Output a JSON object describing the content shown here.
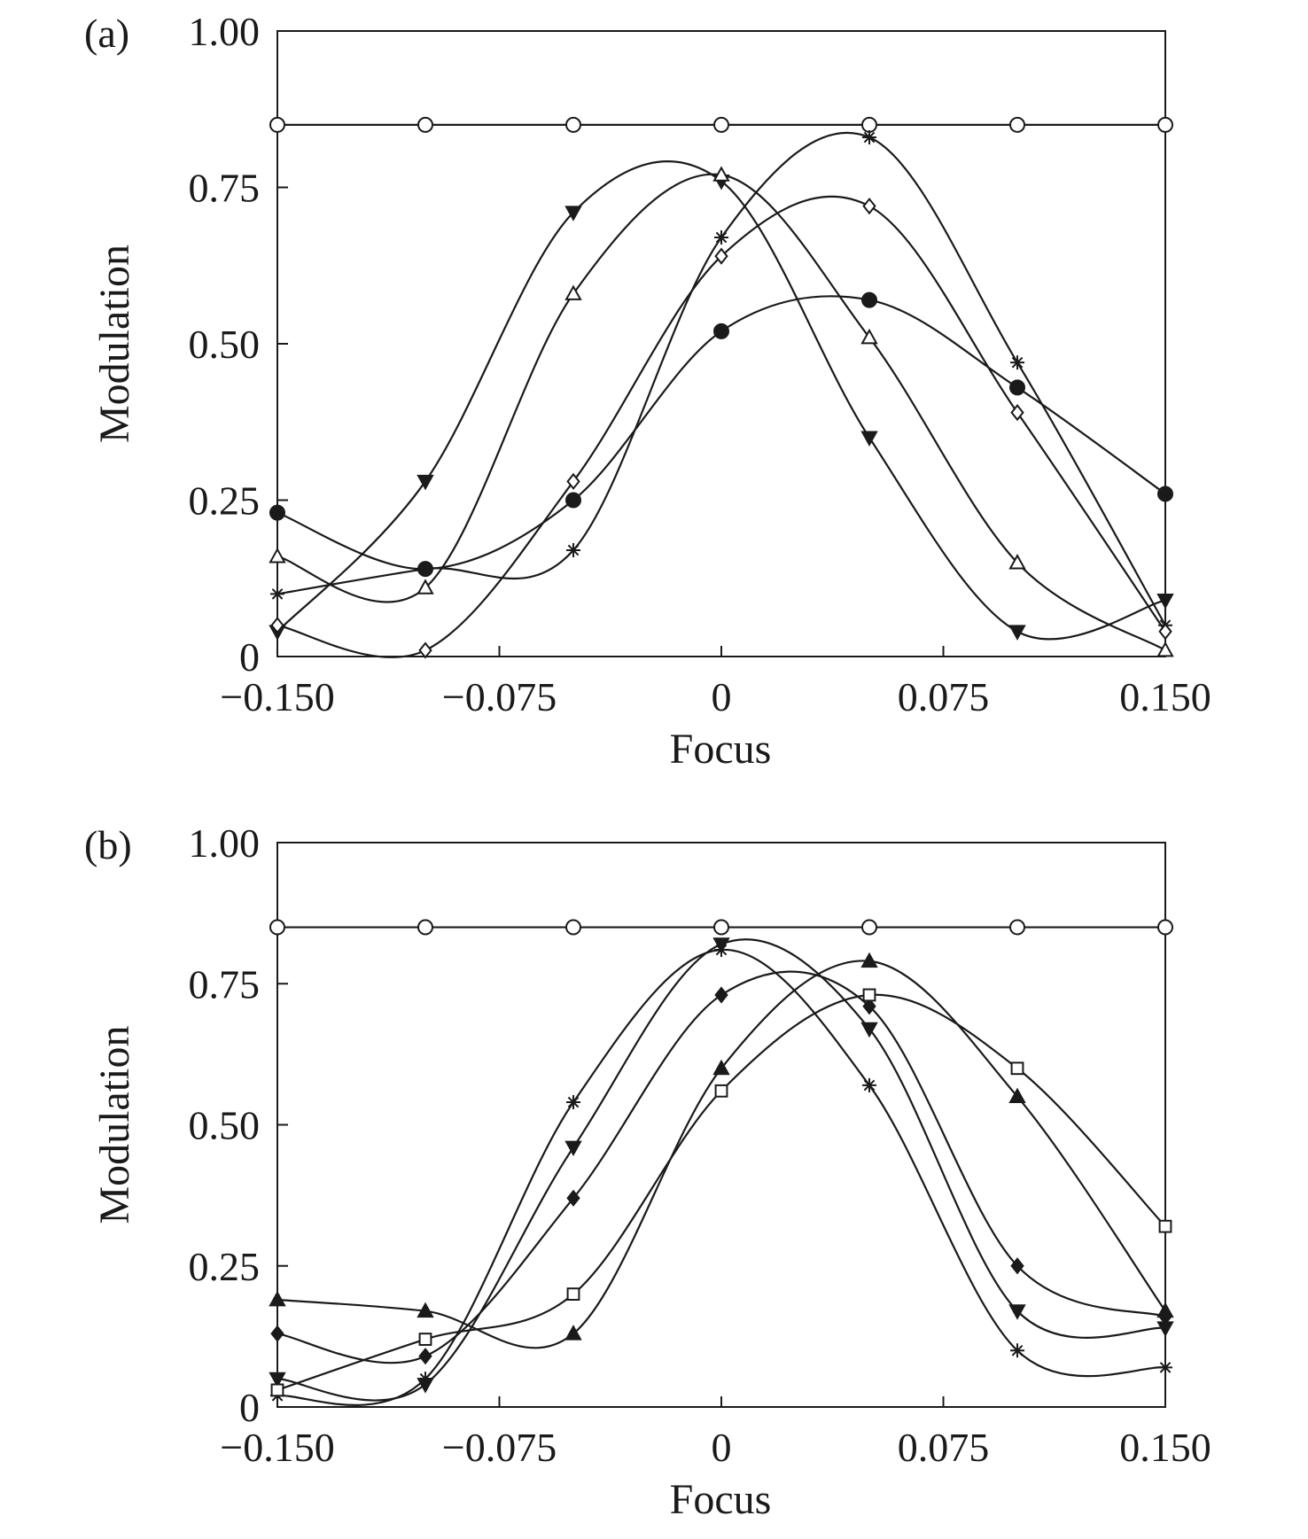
{
  "chart_data": [
    {
      "panel_label": "(a)",
      "type": "line",
      "xlabel": "Focus",
      "ylabel": "Modulation",
      "xlim": [
        -0.15,
        0.15
      ],
      "ylim": [
        0,
        1.0
      ],
      "x_ticks": [
        "−0.150",
        "−0.075",
        "0",
        "0.075",
        "0.150"
      ],
      "y_ticks": [
        "0",
        "0.25",
        "0.50",
        "0.75",
        "1.00"
      ],
      "x_tick_values": [
        -0.15,
        -0.075,
        0,
        0.075,
        0.15
      ],
      "y_tick_values": [
        0,
        0.25,
        0.5,
        0.75,
        1.0
      ],
      "grid": false,
      "x": [
        -0.15,
        -0.1,
        -0.05,
        0,
        0.05,
        0.1,
        0.15
      ],
      "series": [
        {
          "marker": "circle-open",
          "values": [
            0.85,
            0.85,
            0.85,
            0.85,
            0.85,
            0.85,
            0.85
          ]
        },
        {
          "marker": "triangle-down-filled",
          "values": [
            0.04,
            0.28,
            0.71,
            0.76,
            0.35,
            0.04,
            0.09
          ]
        },
        {
          "marker": "triangle-up-open",
          "values": [
            0.16,
            0.11,
            0.58,
            0.77,
            0.51,
            0.15,
            0.01
          ]
        },
        {
          "marker": "star",
          "values": [
            0.1,
            0.14,
            0.17,
            0.67,
            0.83,
            0.47,
            0.05
          ]
        },
        {
          "marker": "diamond-open",
          "values": [
            0.05,
            0.01,
            0.28,
            0.64,
            0.72,
            0.39,
            0.04
          ]
        },
        {
          "marker": "hexagon-filled",
          "values": [
            0.23,
            0.14,
            0.25,
            0.52,
            0.57,
            0.43,
            0.26
          ]
        }
      ]
    },
    {
      "panel_label": "(b)",
      "type": "line",
      "xlabel": "Focus",
      "ylabel": "Modulation",
      "xlim": [
        -0.15,
        0.15
      ],
      "ylim": [
        0,
        1.0
      ],
      "x_ticks": [
        "−0.150",
        "−0.075",
        "0",
        "0.075",
        "0.150"
      ],
      "y_ticks": [
        "0",
        "0.25",
        "0.50",
        "0.75",
        "1.00"
      ],
      "x_tick_values": [
        -0.15,
        -0.075,
        0,
        0.075,
        0.15
      ],
      "y_tick_values": [
        0,
        0.25,
        0.5,
        0.75,
        1.0
      ],
      "grid": false,
      "x": [
        -0.15,
        -0.1,
        -0.05,
        0,
        0.05,
        0.1,
        0.15
      ],
      "series": [
        {
          "marker": "circle-open",
          "values": [
            0.85,
            0.85,
            0.85,
            0.85,
            0.85,
            0.85,
            0.85
          ]
        },
        {
          "marker": "star",
          "values": [
            0.02,
            0.05,
            0.54,
            0.81,
            0.57,
            0.1,
            0.07
          ]
        },
        {
          "marker": "triangle-down-filled",
          "values": [
            0.05,
            0.04,
            0.46,
            0.82,
            0.67,
            0.17,
            0.14
          ]
        },
        {
          "marker": "diamond-filled",
          "values": [
            0.13,
            0.09,
            0.37,
            0.73,
            0.71,
            0.25,
            0.16
          ]
        },
        {
          "marker": "triangle-up-filled",
          "values": [
            0.19,
            0.17,
            0.13,
            0.6,
            0.79,
            0.55,
            0.17
          ]
        },
        {
          "marker": "square-open",
          "values": [
            0.03,
            0.12,
            0.2,
            0.56,
            0.73,
            0.6,
            0.32
          ]
        }
      ]
    }
  ]
}
